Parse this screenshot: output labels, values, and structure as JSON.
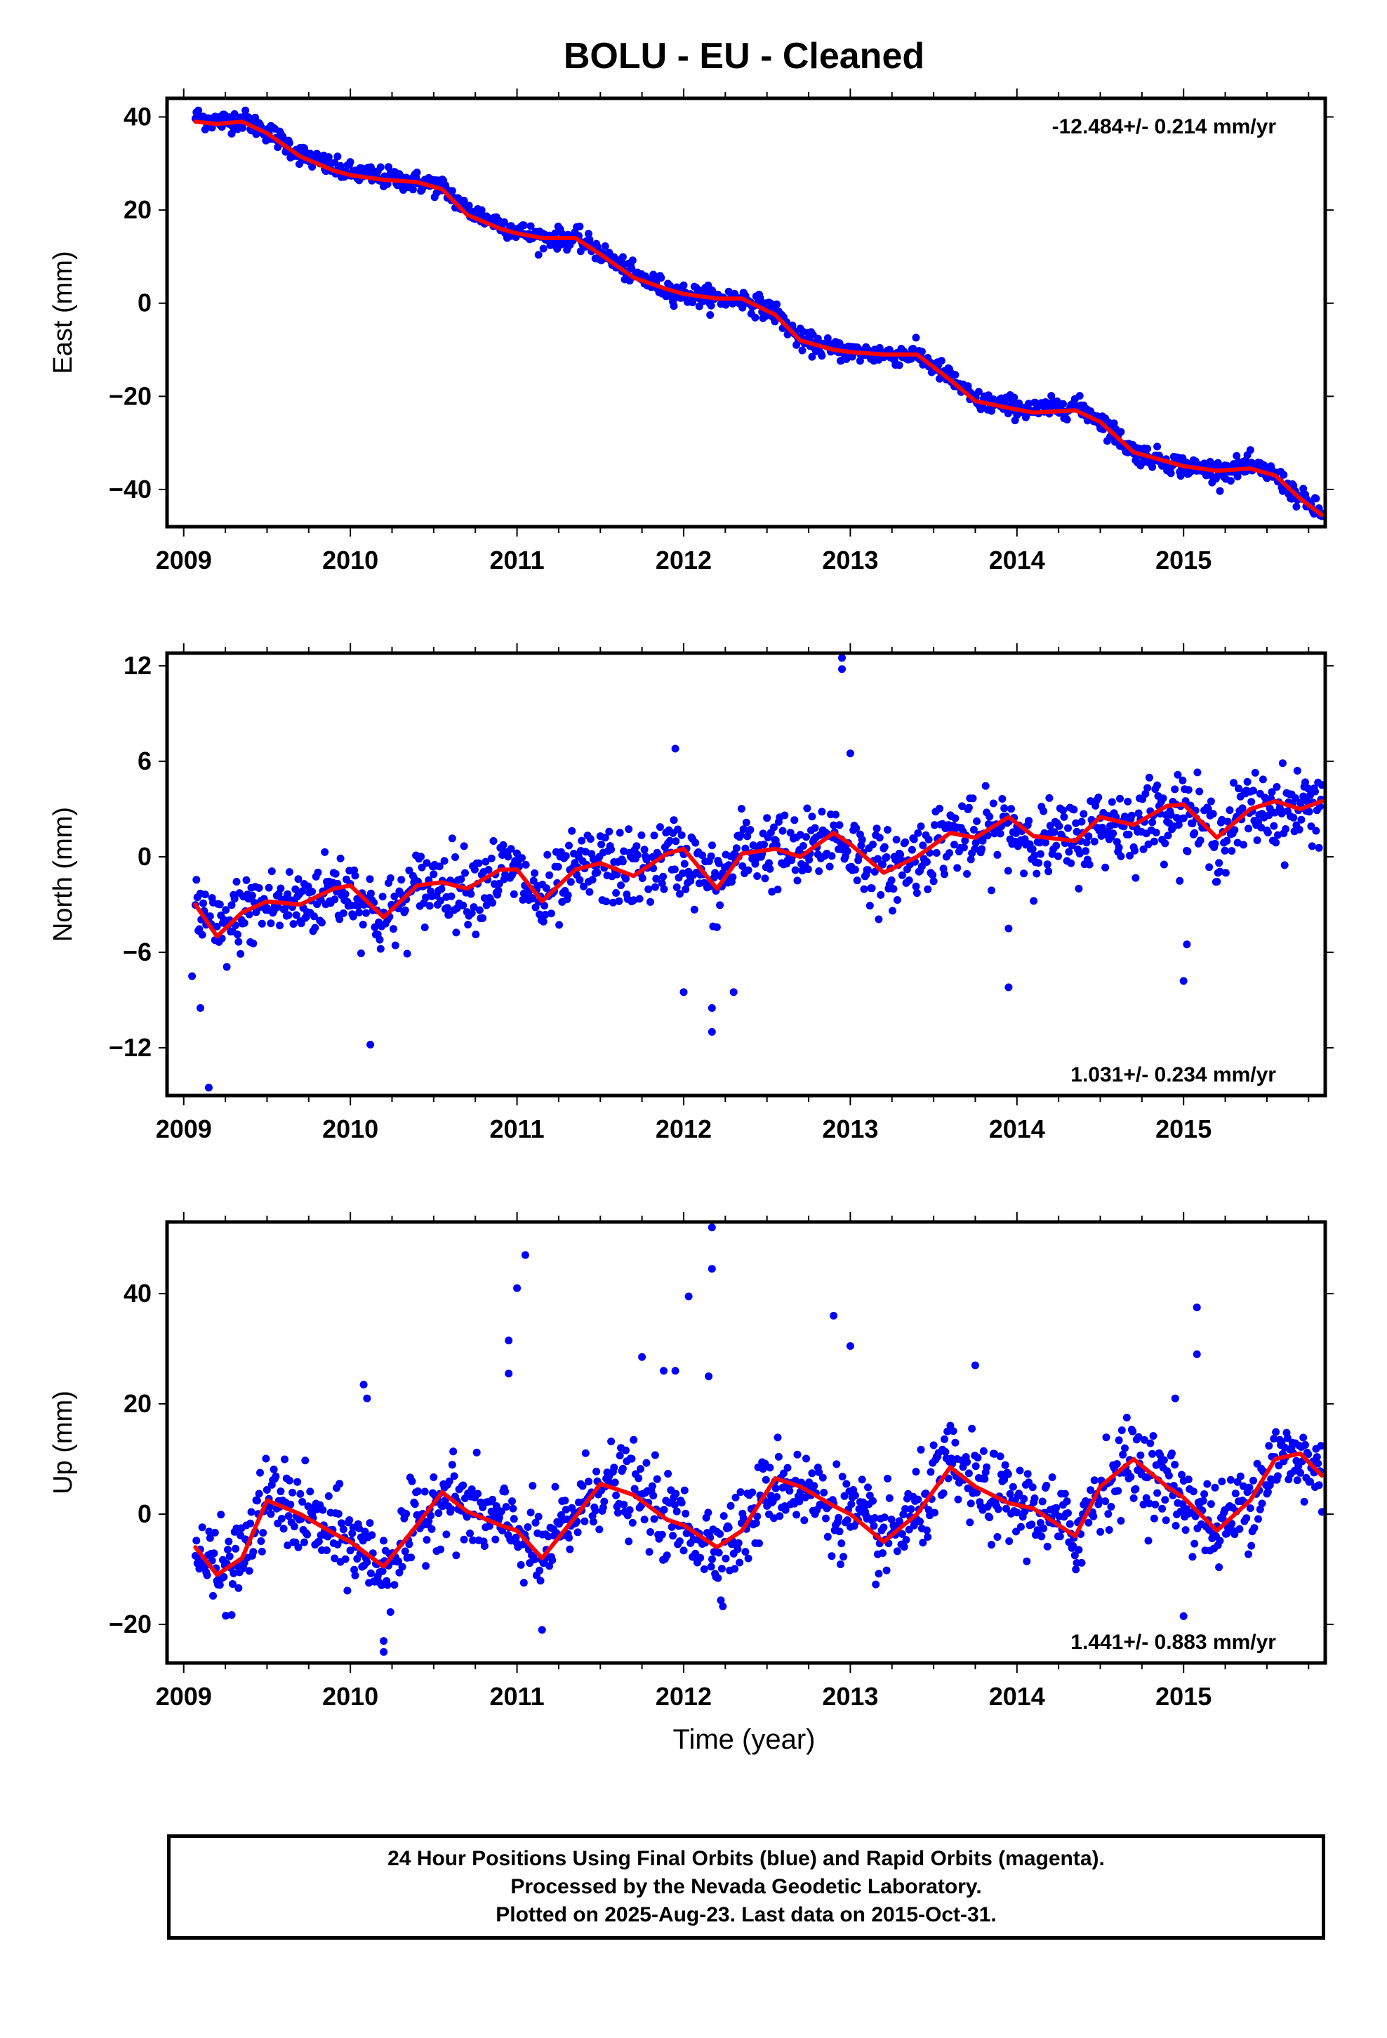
{
  "title": "BOLU  - EU - Cleaned",
  "caption": {
    "line1": "24 Hour Positions Using Final Orbits (blue) and Rapid Orbits (magenta).",
    "line2": "Processed by the Nevada Geodetic Laboratory.",
    "line3": "Plotted on 2025-Aug-23. Last data on 2015-Oct-31."
  },
  "colors": {
    "points": "#0000ff",
    "fit": "#ff0000",
    "frame": "#000000"
  },
  "chart_data": [
    {
      "type": "scatter",
      "component": "east",
      "ylabel": "East (mm)",
      "xlabel": "",
      "xlim": [
        2008.9,
        2015.85
      ],
      "ylim": [
        -48,
        44
      ],
      "yticks": [
        -40,
        -20,
        0,
        20,
        40
      ],
      "xticks": [
        2009,
        2010,
        2011,
        2012,
        2013,
        2014,
        2015
      ],
      "rate_label": "-12.484+/- 0.214 mm/yr",
      "rate_position": "top-right",
      "series": [
        {
          "name": "Final Orbits (blue)",
          "x": [
            2009.07,
            2009.2,
            2009.35,
            2009.5,
            2009.7,
            2009.9,
            2010.0,
            2010.2,
            2010.4,
            2010.55,
            2010.7,
            2010.9,
            2011.0,
            2011.15,
            2011.35,
            2011.5,
            2011.7,
            2011.9,
            2012.0,
            2012.2,
            2012.35,
            2012.55,
            2012.7,
            2012.9,
            2013.0,
            2013.2,
            2013.4,
            2013.6,
            2013.75,
            2013.95,
            2014.1,
            2014.35,
            2014.5,
            2014.7,
            2014.9,
            2015.0,
            2015.2,
            2015.4,
            2015.55,
            2015.7,
            2015.83
          ],
          "y": [
            40,
            39,
            39.5,
            37,
            32,
            29,
            28,
            27,
            26,
            25,
            20,
            17,
            15.5,
            14,
            14,
            11,
            6,
            3,
            2,
            1,
            1,
            -2,
            -8,
            -10,
            -10.5,
            -11,
            -11,
            -16,
            -21,
            -22,
            -23,
            -22,
            -25,
            -32,
            -34,
            -35,
            -36,
            -35,
            -37,
            -42,
            -45
          ]
        },
        {
          "name": "fit",
          "x": [
            2009.07,
            2009.2,
            2009.35,
            2009.5,
            2009.7,
            2009.9,
            2010.0,
            2010.2,
            2010.4,
            2010.55,
            2010.7,
            2010.9,
            2011.0,
            2011.15,
            2011.35,
            2011.5,
            2011.7,
            2011.9,
            2012.0,
            2012.2,
            2012.35,
            2012.55,
            2012.7,
            2012.9,
            2013.0,
            2013.2,
            2013.4,
            2013.6,
            2013.75,
            2013.95,
            2014.1,
            2014.35,
            2014.5,
            2014.7,
            2014.9,
            2015.0,
            2015.2,
            2015.4,
            2015.55,
            2015.7,
            2015.83
          ],
          "y": [
            39,
            38.5,
            39,
            36.5,
            31.5,
            28.5,
            27.5,
            26.5,
            26,
            24.5,
            19,
            16,
            15,
            14,
            14,
            10.5,
            5.5,
            3,
            2,
            1,
            1,
            -2.5,
            -8,
            -10,
            -10.5,
            -11,
            -11,
            -16.5,
            -21,
            -22.5,
            -23.5,
            -23,
            -25.5,
            -32,
            -34,
            -35,
            -36,
            -35.5,
            -37,
            -42,
            -45.5
          ]
        }
      ]
    },
    {
      "type": "scatter",
      "component": "north",
      "ylabel": "North (mm)",
      "xlabel": "",
      "xlim": [
        2008.9,
        2015.85
      ],
      "ylim": [
        -15,
        12.8
      ],
      "yticks": [
        -12,
        -6,
        0,
        6,
        12
      ],
      "xticks": [
        2009,
        2010,
        2011,
        2012,
        2013,
        2014,
        2015
      ],
      "rate_label": "1.031+/- 0.234 mm/yr",
      "rate_position": "bottom-right",
      "series": [
        {
          "name": "Final Orbits (blue)",
          "x": [
            2009.07,
            2009.2,
            2009.35,
            2009.5,
            2009.7,
            2009.9,
            2010.0,
            2010.2,
            2010.4,
            2010.55,
            2010.7,
            2010.9,
            2011.0,
            2011.15,
            2011.35,
            2011.5,
            2011.7,
            2011.9,
            2012.0,
            2012.2,
            2012.35,
            2012.55,
            2012.7,
            2012.9,
            2013.0,
            2013.2,
            2013.4,
            2013.6,
            2013.75,
            2013.95,
            2014.1,
            2014.35,
            2014.5,
            2014.7,
            2014.9,
            2015.0,
            2015.2,
            2015.4,
            2015.55,
            2015.7,
            2015.83
          ],
          "y": [
            -3,
            -5,
            -3.5,
            -3,
            -3,
            -2,
            -2,
            -4,
            -2,
            -1.5,
            -2,
            -1,
            -1,
            -3,
            -1,
            -0.5,
            -1,
            0,
            0,
            -2,
            0.5,
            0.5,
            0,
            1.5,
            0.5,
            -1,
            0,
            1.5,
            1,
            2,
            1,
            1,
            2,
            2,
            3,
            3,
            1,
            3,
            3,
            3,
            3.5
          ],
          "outliers": [
            [
              2009.1,
              -9.5
            ],
            [
              2009.15,
              -14.5
            ],
            [
              2009.05,
              -7.5
            ],
            [
              2010.12,
              -11.8
            ],
            [
              2012.0,
              -8.5
            ],
            [
              2012.17,
              -11
            ],
            [
              2012.17,
              -9.5
            ],
            [
              2012.3,
              -8.5
            ],
            [
              2012.95,
              12.5
            ],
            [
              2012.95,
              11.8
            ],
            [
              2013.0,
              6.5
            ],
            [
              2013.95,
              -8.2
            ],
            [
              2013.95,
              -4.5
            ],
            [
              2015.0,
              -7.8
            ],
            [
              2015.02,
              -5.5
            ],
            [
              2011.95,
              6.8
            ]
          ]
        },
        {
          "name": "fit",
          "x": [
            2009.07,
            2009.2,
            2009.35,
            2009.5,
            2009.7,
            2009.9,
            2010.0,
            2010.2,
            2010.4,
            2010.55,
            2010.7,
            2010.9,
            2011.0,
            2011.15,
            2011.35,
            2011.5,
            2011.7,
            2011.9,
            2012.0,
            2012.2,
            2012.35,
            2012.55,
            2012.7,
            2012.9,
            2013.0,
            2013.2,
            2013.4,
            2013.6,
            2013.75,
            2013.95,
            2014.1,
            2014.35,
            2014.5,
            2014.7,
            2014.9,
            2015.0,
            2015.2,
            2015.4,
            2015.55,
            2015.7,
            2015.83
          ],
          "y": [
            -3,
            -5,
            -3.5,
            -2.8,
            -3,
            -2,
            -1.8,
            -3.8,
            -1.8,
            -1.6,
            -2,
            -0.8,
            -0.8,
            -2.8,
            -0.8,
            -0.4,
            -1.2,
            0.2,
            0.5,
            -2,
            0.2,
            0.5,
            0,
            1.5,
            0.8,
            -1,
            0,
            1.5,
            1.2,
            2.5,
            1.3,
            1,
            2.5,
            2,
            3.2,
            3.3,
            1.2,
            3,
            3.5,
            3,
            3.5
          ]
        }
      ]
    },
    {
      "type": "scatter",
      "component": "up",
      "ylabel": "Up (mm)",
      "xlabel": "Time (year)",
      "xlim": [
        2008.9,
        2015.85
      ],
      "ylim": [
        -27,
        53
      ],
      "yticks": [
        -20,
        0,
        20,
        40
      ],
      "xticks": [
        2009,
        2010,
        2011,
        2012,
        2013,
        2014,
        2015
      ],
      "rate_label": "1.441+/- 0.883 mm/yr",
      "rate_position": "bottom-right",
      "series": [
        {
          "name": "Final Orbits (blue)",
          "x": [
            2009.07,
            2009.2,
            2009.35,
            2009.5,
            2009.7,
            2009.9,
            2010.0,
            2010.2,
            2010.4,
            2010.55,
            2010.7,
            2010.9,
            2011.0,
            2011.15,
            2011.35,
            2011.5,
            2011.7,
            2011.9,
            2012.0,
            2012.2,
            2012.35,
            2012.55,
            2012.7,
            2012.9,
            2013.0,
            2013.2,
            2013.4,
            2013.6,
            2013.75,
            2013.95,
            2014.1,
            2014.35,
            2014.5,
            2014.7,
            2014.9,
            2015.0,
            2015.2,
            2015.4,
            2015.55,
            2015.7,
            2015.83
          ],
          "y": [
            -6,
            -11,
            -8,
            3,
            0,
            -4,
            -5,
            -10,
            -2,
            4,
            1,
            -2,
            -3,
            -8,
            0,
            6,
            4,
            -1,
            -2,
            -6,
            -3,
            6,
            5,
            1,
            0,
            -5,
            0,
            9,
            5,
            2,
            1,
            -4,
            5,
            10,
            5,
            3,
            -3,
            3,
            10,
            10,
            7
          ],
          "outliers": [
            [
              2010.08,
              23.5
            ],
            [
              2010.1,
              21
            ],
            [
              2010.2,
              -25
            ],
            [
              2010.2,
              -23
            ],
            [
              2010.95,
              31.5
            ],
            [
              2010.95,
              25.5
            ],
            [
              2011.0,
              41
            ],
            [
              2011.05,
              47
            ],
            [
              2011.15,
              -21
            ],
            [
              2011.75,
              28.5
            ],
            [
              2011.88,
              26
            ],
            [
              2011.95,
              26
            ],
            [
              2012.03,
              39.5
            ],
            [
              2012.17,
              52
            ],
            [
              2012.17,
              44.5
            ],
            [
              2012.15,
              25
            ],
            [
              2012.9,
              36
            ],
            [
              2013.0,
              30.5
            ],
            [
              2013.75,
              27
            ],
            [
              2014.95,
              21
            ],
            [
              2015.0,
              -18.5
            ],
            [
              2015.08,
              37.5
            ],
            [
              2015.08,
              29
            ]
          ]
        },
        {
          "name": "fit",
          "x": [
            2009.07,
            2009.2,
            2009.35,
            2009.5,
            2009.7,
            2009.9,
            2010.0,
            2010.2,
            2010.4,
            2010.55,
            2010.7,
            2010.9,
            2011.0,
            2011.15,
            2011.35,
            2011.5,
            2011.7,
            2011.9,
            2012.0,
            2012.2,
            2012.35,
            2012.55,
            2012.7,
            2012.9,
            2013.0,
            2013.2,
            2013.4,
            2013.6,
            2013.75,
            2013.95,
            2014.1,
            2014.35,
            2014.5,
            2014.7,
            2014.9,
            2015.0,
            2015.2,
            2015.4,
            2015.55,
            2015.7,
            2015.83
          ],
          "y": [
            -6,
            -11,
            -8,
            2.5,
            0,
            -3.5,
            -5,
            -9.5,
            -2,
            4,
            0.5,
            -2,
            -3,
            -8,
            -0.5,
            5.5,
            3.5,
            -1,
            -2,
            -6,
            -3,
            6.5,
            5,
            1.5,
            0,
            -5,
            0,
            8.5,
            5,
            2,
            1,
            -4,
            5,
            10,
            5,
            3,
            -3,
            2.5,
            10,
            11,
            7
          ]
        }
      ]
    }
  ]
}
